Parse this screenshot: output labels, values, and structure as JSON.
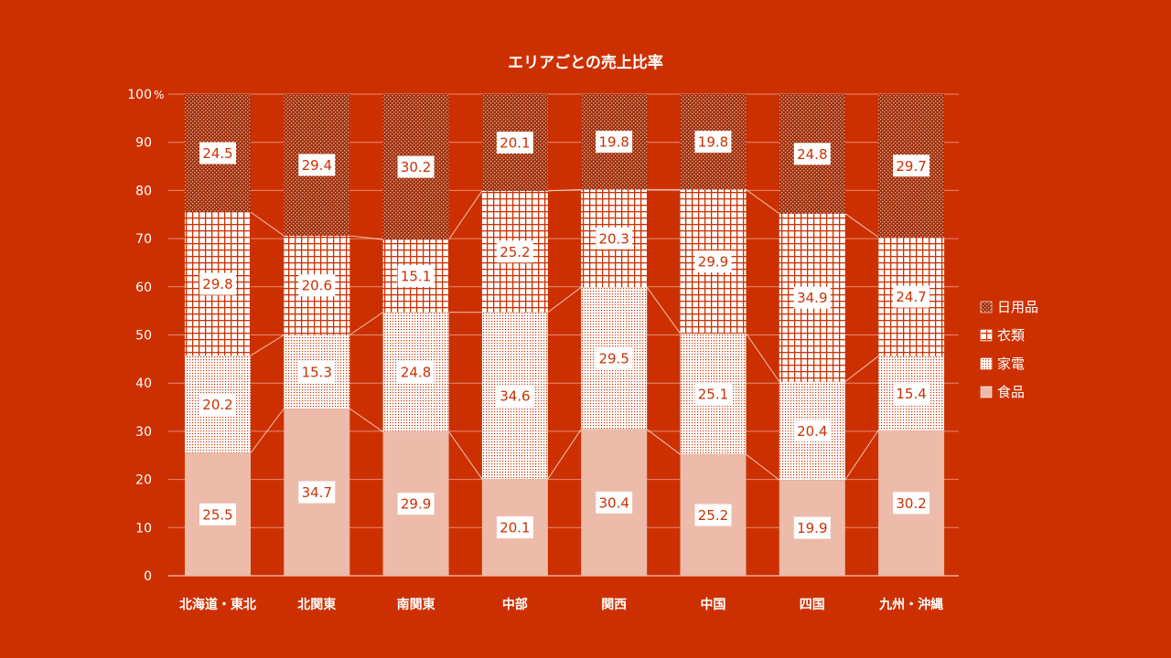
{
  "chart_data": {
    "type": "bar",
    "stacked": true,
    "title": "エリアごとの売上比率",
    "y_unit": "%",
    "ylim": [
      0,
      100
    ],
    "yticks": [
      0,
      10,
      20,
      30,
      40,
      50,
      60,
      70,
      80,
      90,
      100
    ],
    "grid": true,
    "legend_position": "right",
    "categories": [
      "北海道・東北",
      "北関東",
      "南関東",
      "中部",
      "関西",
      "中国",
      "四国",
      "九州・沖縄"
    ],
    "series": [
      {
        "name": "食品",
        "values": [
          25.5,
          34.7,
          29.9,
          20.1,
          30.4,
          25.2,
          19.9,
          30.2
        ]
      },
      {
        "name": "家電",
        "values": [
          20.2,
          15.3,
          24.8,
          34.6,
          29.5,
          25.1,
          20.4,
          15.4
        ]
      },
      {
        "name": "衣類",
        "values": [
          29.8,
          20.6,
          15.1,
          25.2,
          20.3,
          29.9,
          34.9,
          24.7
        ]
      },
      {
        "name": "日用品",
        "values": [
          24.5,
          29.4,
          30.2,
          20.1,
          19.8,
          19.8,
          24.8,
          29.7
        ]
      }
    ],
    "legend_order": [
      "日用品",
      "衣類",
      "家電",
      "食品"
    ]
  },
  "colors": {
    "background": "#cd3000",
    "food": "#ecbbaa",
    "pattern_light": "#ffffff",
    "pattern_dark": "#cd3000",
    "text": "#ffffff",
    "label_text": "#cd3000",
    "label_bg": "#ffffff"
  }
}
